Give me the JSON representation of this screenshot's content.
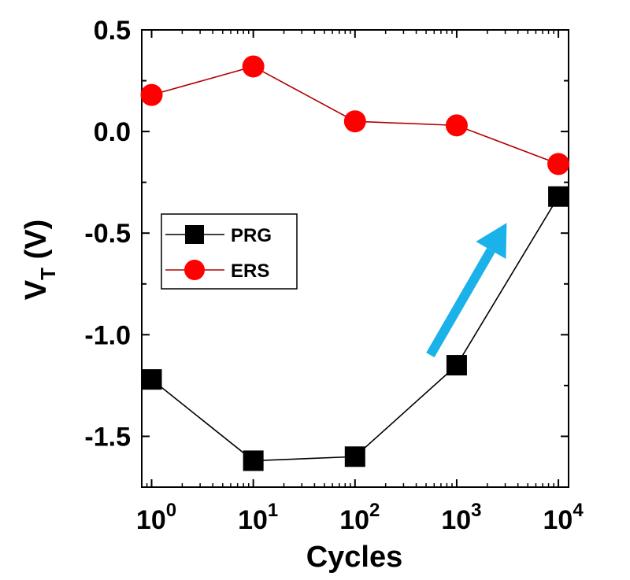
{
  "chart_data": {
    "type": "line",
    "xlabel": "Cycles",
    "ylabel": "V",
    "ylabel_subscript": "T",
    "ylabel_unit": "(V)",
    "x_scale": "log",
    "xlim": [
      0.8,
      12589
    ],
    "ylim": [
      -1.75,
      0.5
    ],
    "x": [
      1,
      10,
      100,
      1000,
      10000
    ],
    "x_tick_labels": [
      {
        "base": "10",
        "exp": "0"
      },
      {
        "base": "10",
        "exp": "1"
      },
      {
        "base": "10",
        "exp": "2"
      },
      {
        "base": "10",
        "exp": "3"
      },
      {
        "base": "10",
        "exp": "4"
      }
    ],
    "y_ticks": [
      0.5,
      0.0,
      -0.5,
      -1.0,
      -1.5
    ],
    "y_tick_labels": [
      "0.5",
      "0.0",
      "-0.5",
      "-1.0",
      "-1.5"
    ],
    "grid": false,
    "legend_position": "middle-left",
    "series": [
      {
        "name": "PRG",
        "marker": "square",
        "color": "#000000",
        "line_color": "#000000",
        "values": [
          -1.22,
          -1.62,
          -1.6,
          -1.15,
          -0.32
        ]
      },
      {
        "name": "ERS",
        "marker": "circle",
        "color": "#ff0000",
        "line_color": "#b30000",
        "values": [
          0.18,
          0.32,
          0.05,
          0.03,
          -0.16
        ]
      }
    ],
    "annotation": {
      "type": "arrow",
      "color": "#1ab2e8",
      "from": [
        550,
        -1.1
      ],
      "to": [
        3100,
        -0.45
      ]
    }
  }
}
